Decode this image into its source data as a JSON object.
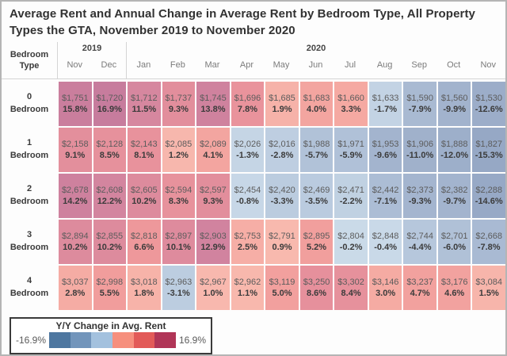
{
  "title": "Average Rent and Annual Change in Average Rent by Bedroom Type, All Property Types the GTA, November 2019 to November 2020",
  "table": {
    "corner_label": "Bedroom Type",
    "year_groups": [
      {
        "label": "2019",
        "span": 2
      },
      {
        "label": "2020",
        "span": 11
      }
    ],
    "months": [
      "Nov",
      "Dec",
      "Jan",
      "Feb",
      "Mar",
      "Apr",
      "May",
      "Jun",
      "Jul",
      "Aug",
      "Sep",
      "Oct",
      "Nov"
    ]
  },
  "chart_data": {
    "type": "heatmap",
    "title": "Average Rent and Annual Change in Average Rent by Bedroom Type, All Property Types the GTA, November 2019 to November 2020",
    "columns": [
      "Nov 2019",
      "Dec 2019",
      "Jan 2020",
      "Feb 2020",
      "Mar 2020",
      "Apr 2020",
      "May 2020",
      "Jun 2020",
      "Jul 2020",
      "Aug 2020",
      "Sep 2020",
      "Oct 2020",
      "Nov 2020"
    ],
    "value_encoding": "cell background color encodes yoy_change_pct on diverging blue-red scale",
    "rows": [
      {
        "label_top": "0",
        "label_bottom": "Bedroom",
        "rent": [
          "$1,751",
          "$1,720",
          "$1,712",
          "$1,737",
          "$1,745",
          "$1,696",
          "$1,685",
          "$1,683",
          "$1,660",
          "$1,633",
          "$1,590",
          "$1,560",
          "$1,530"
        ],
        "yoy_change_pct": [
          15.8,
          16.9,
          11.5,
          9.3,
          13.8,
          7.8,
          1.9,
          4.0,
          3.3,
          -1.7,
          -7.9,
          -9.9,
          -12.6
        ]
      },
      {
        "label_top": "1",
        "label_bottom": "Bedroom",
        "rent": [
          "$2,158",
          "$2,128",
          "$2,143",
          "$2,085",
          "$2,089",
          "$2,026",
          "$2,016",
          "$1,988",
          "$1,971",
          "$1,953",
          "$1,906",
          "$1,888",
          "$1,827"
        ],
        "yoy_change_pct": [
          9.1,
          8.5,
          8.1,
          1.2,
          4.1,
          -1.3,
          -2.8,
          -5.7,
          -5.9,
          -9.6,
          -11.0,
          -12.0,
          -15.3
        ]
      },
      {
        "label_top": "2",
        "label_bottom": "Bedroom",
        "rent": [
          "$2,678",
          "$2,608",
          "$2,605",
          "$2,594",
          "$2,597",
          "$2,454",
          "$2,420",
          "$2,469",
          "$2,471",
          "$2,442",
          "$2,373",
          "$2,382",
          "$2,288"
        ],
        "yoy_change_pct": [
          14.2,
          12.2,
          10.2,
          8.3,
          9.3,
          -0.8,
          -3.3,
          -3.5,
          -2.2,
          -7.1,
          -9.3,
          -9.7,
          -14.6
        ]
      },
      {
        "label_top": "3",
        "label_bottom": "Bedroom",
        "rent": [
          "$2,894",
          "$2,855",
          "$2,818",
          "$2,897",
          "$2,903",
          "$2,753",
          "$2,791",
          "$2,895",
          "$2,804",
          "$2,848",
          "$2,744",
          "$2,701",
          "$2,668"
        ],
        "yoy_change_pct": [
          10.2,
          10.2,
          6.6,
          10.1,
          12.9,
          2.5,
          0.9,
          5.2,
          -0.2,
          -0.4,
          -4.4,
          -6.0,
          -7.8
        ]
      },
      {
        "label_top": "4",
        "label_bottom": "Bedroom",
        "rent": [
          "$3,037",
          "$2,998",
          "$3,018",
          "$2,963",
          "$2,967",
          "$2,962",
          "$3,119",
          "$3,250",
          "$3,302",
          "$3,146",
          "$3,237",
          "$3,176",
          "$3,084"
        ],
        "yoy_change_pct": [
          2.8,
          5.5,
          1.8,
          -3.1,
          1.0,
          1.1,
          5.0,
          8.6,
          8.4,
          3.0,
          4.7,
          4.6,
          1.5
        ]
      }
    ],
    "color_scale": {
      "min": -16.9,
      "max": 16.9,
      "label": "Y/Y Change in Avg. Rent"
    }
  },
  "legend": {
    "title": "Y/Y Change in Avg. Rent",
    "min_label": "-16.9%",
    "max_label": "16.9%",
    "swatches": [
      "#4e77a0",
      "#7295bb",
      "#a3c1de",
      "#f68f7d",
      "#e25a58",
      "#b03557"
    ]
  },
  "colors": {
    "cell_scale_stops": [
      [
        -17,
        "#92a4c2"
      ],
      [
        -10,
        "#a2b3cd"
      ],
      [
        -5,
        "#b3c4da"
      ],
      [
        -0.01,
        "#cbdbe9"
      ],
      [
        0.01,
        "#f9bfb3"
      ],
      [
        3,
        "#f5aba3"
      ],
      [
        6,
        "#f09a9b"
      ],
      [
        9,
        "#e48f9c"
      ],
      [
        12,
        "#d3859f"
      ],
      [
        17,
        "#c77c9d"
      ]
    ]
  }
}
